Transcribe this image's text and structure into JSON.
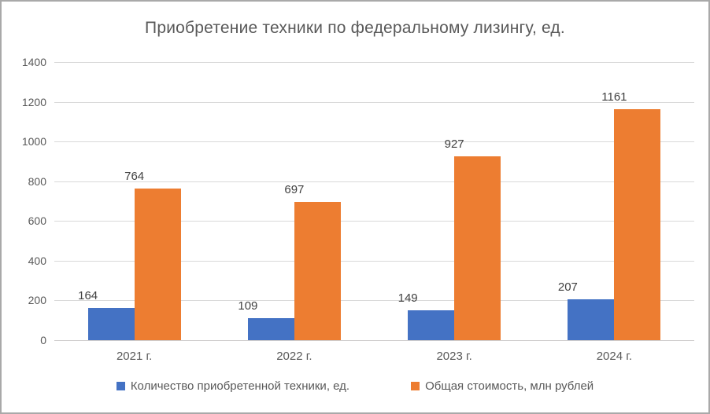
{
  "chart_data": {
    "type": "bar",
    "title": "Приобретение техники по федеральному лизингу, ед.",
    "categories": [
      "2021 г.",
      "2022 г.",
      "2023 г.",
      "2024 г."
    ],
    "series": [
      {
        "name": "Количество приобретенной техники, ед.",
        "color": "#4472C4",
        "values": [
          164,
          109,
          149,
          207
        ]
      },
      {
        "name": "Общая стоимость, млн рублей",
        "color": "#ED7D31",
        "values": [
          764,
          697,
          927,
          1161
        ]
      }
    ],
    "ylim": [
      0,
      1400
    ],
    "ytick_step": 200,
    "yticks": [
      0,
      200,
      400,
      600,
      800,
      1000,
      1200,
      1400
    ],
    "grid": true,
    "data_labels": true,
    "legend_position": "bottom",
    "colors": {
      "title_text": "#595959",
      "axis_text": "#595959",
      "data_label_text": "#404040",
      "gridline": "#D9D9D9",
      "axis_line": "#CFCDCD",
      "background": "#FFFFFF",
      "frame_border": "#A9A9A9"
    }
  }
}
